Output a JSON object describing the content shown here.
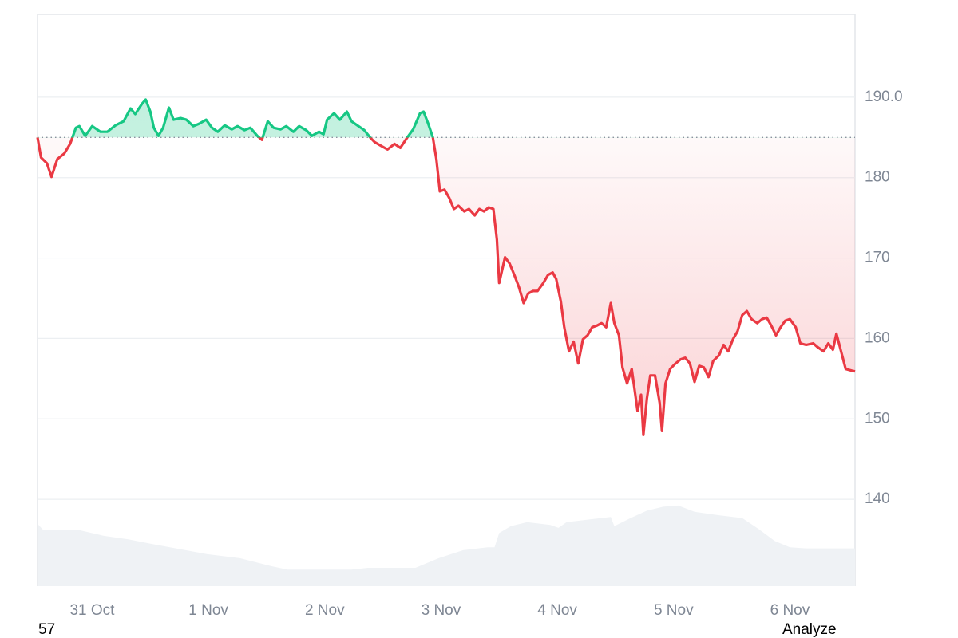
{
  "chart_data": {
    "type": "line",
    "x": [
      30.53,
      30.56,
      30.61,
      30.65,
      30.7,
      30.76,
      30.81,
      30.86,
      30.89,
      30.94,
      31.0,
      31.07,
      31.13,
      31.2,
      31.27,
      31.33,
      31.37,
      31.43,
      31.46,
      31.5,
      31.53,
      31.57,
      31.61,
      31.66,
      31.7,
      31.76,
      31.81,
      31.87,
      31.92,
      31.98,
      32.03,
      32.08,
      32.14,
      32.2,
      32.25,
      32.31,
      32.36,
      32.42,
      32.46,
      32.51,
      32.56,
      32.62,
      32.67,
      32.73,
      32.78,
      32.84,
      32.89,
      32.95,
      32.99,
      33.02,
      33.08,
      33.13,
      33.19,
      33.23,
      33.28,
      33.34,
      33.39,
      33.43,
      33.49,
      33.54,
      33.6,
      33.65,
      33.71,
      33.76,
      33.82,
      33.85,
      33.89,
      33.93,
      33.96,
      33.99,
      34.03,
      34.07,
      34.11,
      34.15,
      34.2,
      34.24,
      34.29,
      34.33,
      34.37,
      34.41,
      34.45,
      34.48,
      34.5,
      34.55,
      34.59,
      34.63,
      34.67,
      34.71,
      34.75,
      34.79,
      34.83,
      34.88,
      34.92,
      34.96,
      34.99,
      35.03,
      35.06,
      35.1,
      35.14,
      35.18,
      35.22,
      35.26,
      35.3,
      35.34,
      35.38,
      35.42,
      35.46,
      35.49,
      35.53,
      35.56,
      35.6,
      35.64,
      35.69,
      35.72,
      35.74,
      35.77,
      35.8,
      35.84,
      35.88,
      35.9,
      35.93,
      35.97,
      36.01,
      36.06,
      36.1,
      36.14,
      36.18,
      36.22,
      36.26,
      36.3,
      36.34,
      36.39,
      36.43,
      36.47,
      36.51,
      36.55,
      36.59,
      36.63,
      36.67,
      36.72,
      36.76,
      36.8,
      36.84,
      36.88,
      36.92,
      36.96,
      37.0,
      37.05,
      37.09,
      37.14,
      37.2,
      37.24,
      37.29,
      37.33,
      37.37,
      37.4,
      37.44,
      37.48,
      37.53,
      37.56
    ],
    "values": [
      185.0,
      182.5,
      181.8,
      180.1,
      182.3,
      183.0,
      184.2,
      186.2,
      186.4,
      185.2,
      186.4,
      185.7,
      185.7,
      186.5,
      187.0,
      188.6,
      187.9,
      189.2,
      189.7,
      188.2,
      186.2,
      185.2,
      186.2,
      188.7,
      187.2,
      187.4,
      187.2,
      186.4,
      186.7,
      187.2,
      186.2,
      185.7,
      186.5,
      186.0,
      186.4,
      185.9,
      186.2,
      185.2,
      184.7,
      187.0,
      186.2,
      186.0,
      186.4,
      185.7,
      186.4,
      185.9,
      185.2,
      185.7,
      185.4,
      187.2,
      188.0,
      187.2,
      188.2,
      187.0,
      186.5,
      185.9,
      185.0,
      184.4,
      183.9,
      183.5,
      184.2,
      183.7,
      185.0,
      186.0,
      188.0,
      188.2,
      186.7,
      185.0,
      182.3,
      178.3,
      178.5,
      177.5,
      176.1,
      176.5,
      175.8,
      176.1,
      175.3,
      176.1,
      175.8,
      176.3,
      176.1,
      172.3,
      166.9,
      170.1,
      169.3,
      167.9,
      166.4,
      164.4,
      165.6,
      165.9,
      165.9,
      166.9,
      167.9,
      168.2,
      167.4,
      164.6,
      161.4,
      158.4,
      159.6,
      156.9,
      159.9,
      160.4,
      161.4,
      161.6,
      161.9,
      161.4,
      164.4,
      161.9,
      160.4,
      156.4,
      154.4,
      156.2,
      151.0,
      153.0,
      148.0,
      152.5,
      155.4,
      155.4,
      152.0,
      148.5,
      154.4,
      156.2,
      156.8,
      157.4,
      157.6,
      156.9,
      154.6,
      156.6,
      156.4,
      155.2,
      157.2,
      157.9,
      159.2,
      158.4,
      159.9,
      160.9,
      162.9,
      163.4,
      162.4,
      161.9,
      162.4,
      162.6,
      161.6,
      160.4,
      161.4,
      162.2,
      162.4,
      161.4,
      159.4,
      159.2,
      159.4,
      158.9,
      158.4,
      159.4,
      158.6,
      160.6,
      158.4,
      156.2,
      156.0,
      155.9
    ],
    "baseline": 185,
    "color_up": "#16c784",
    "color_down": "#ea3943",
    "xlim": [
      30.53,
      37.56
    ],
    "xticks": [
      {
        "value": 31,
        "label": "31 Oct"
      },
      {
        "value": 32,
        "label": "1 Nov"
      },
      {
        "value": 33,
        "label": "2 Nov"
      },
      {
        "value": 34,
        "label": "3 Nov"
      },
      {
        "value": 35,
        "label": "4 Nov"
      },
      {
        "value": 36,
        "label": "5 Nov"
      },
      {
        "value": 37,
        "label": "6 Nov"
      }
    ],
    "ylim": [
      129.2,
      200.3
    ],
    "yticks": [
      140,
      150,
      160,
      170,
      180,
      {
        "value": 190,
        "label": "190.0"
      }
    ],
    "grid": true,
    "volume": {
      "axis": "y2",
      "color": "#eff2f5",
      "x": [
        30.53,
        30.58,
        30.69,
        30.89,
        31.1,
        31.31,
        31.51,
        31.72,
        31.99,
        32.27,
        32.54,
        32.68,
        32.95,
        33.23,
        33.37,
        33.64,
        33.78,
        33.98,
        34.19,
        34.4,
        34.46,
        34.5,
        34.6,
        34.74,
        34.94,
        35.01,
        35.08,
        35.29,
        35.46,
        35.49,
        35.63,
        35.77,
        35.91,
        36.04,
        36.18,
        36.39,
        36.59,
        36.73,
        36.87,
        37.0,
        37.14,
        37.56
      ],
      "values": [
        10.9,
        9.8,
        9.8,
        9.8,
        8.8,
        8.2,
        7.4,
        6.6,
        5.6,
        4.9,
        3.5,
        2.9,
        2.9,
        2.9,
        3.2,
        3.2,
        3.2,
        4.9,
        6.3,
        6.8,
        6.8,
        9.3,
        10.5,
        11.2,
        10.7,
        10.2,
        11.2,
        11.7,
        12.1,
        10.5,
        11.9,
        13.2,
        13.9,
        14.1,
        13.0,
        12.4,
        11.9,
        10.0,
        7.9,
        6.8,
        6.6,
        6.6
      ]
    },
    "y2lim": [
      0,
      100
    ],
    "footer_left": "57",
    "footer_right": "Analyze"
  }
}
